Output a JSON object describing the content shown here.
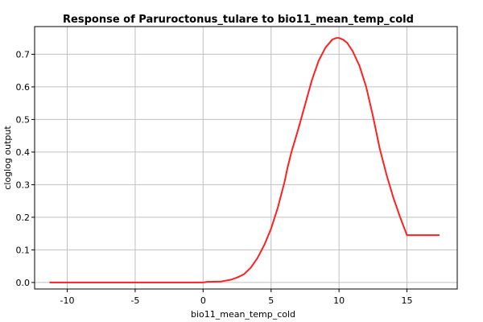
{
  "chart_data": {
    "type": "line",
    "title": "Response of Paruroctonus_tulare to bio11_mean_temp_cold",
    "xlabel": "bio11_mean_temp_cold",
    "ylabel": "cloglog output",
    "xlim": [
      -12.4,
      18.7
    ],
    "ylim": [
      -0.02,
      0.785
    ],
    "xticks": [
      -10,
      -5,
      0,
      5,
      10,
      15
    ],
    "yticks": [
      0.0,
      0.1,
      0.2,
      0.3,
      0.4,
      0.5,
      0.6,
      0.7
    ],
    "ytick_labels": [
      "0.0",
      "0.1",
      "0.2",
      "0.3",
      "0.4",
      "0.5",
      "0.6",
      "0.7"
    ],
    "grid": true,
    "legend": "none",
    "series": [
      {
        "color": "#ff2020",
        "x": [
          -11.3,
          -5,
          0,
          0.3,
          1.3,
          2.0,
          2.5,
          3.0,
          3.5,
          4.0,
          4.5,
          5.0,
          5.5,
          6.0,
          6.2,
          6.5,
          7.0,
          7.5,
          8.0,
          8.5,
          9.0,
          9.5,
          9.8,
          10.0,
          10.3,
          10.6,
          11.0,
          11.5,
          12.0,
          12.5,
          13.0,
          13.5,
          14.0,
          14.5,
          15.0,
          16.0,
          17.4
        ],
        "y": [
          0.0,
          0.0,
          0.0,
          0.002,
          0.003,
          0.008,
          0.015,
          0.025,
          0.045,
          0.075,
          0.115,
          0.165,
          0.23,
          0.31,
          0.35,
          0.4,
          0.47,
          0.545,
          0.62,
          0.68,
          0.72,
          0.745,
          0.75,
          0.75,
          0.745,
          0.735,
          0.71,
          0.665,
          0.6,
          0.51,
          0.41,
          0.33,
          0.26,
          0.2,
          0.145,
          0.145,
          0.145
        ]
      }
    ]
  }
}
